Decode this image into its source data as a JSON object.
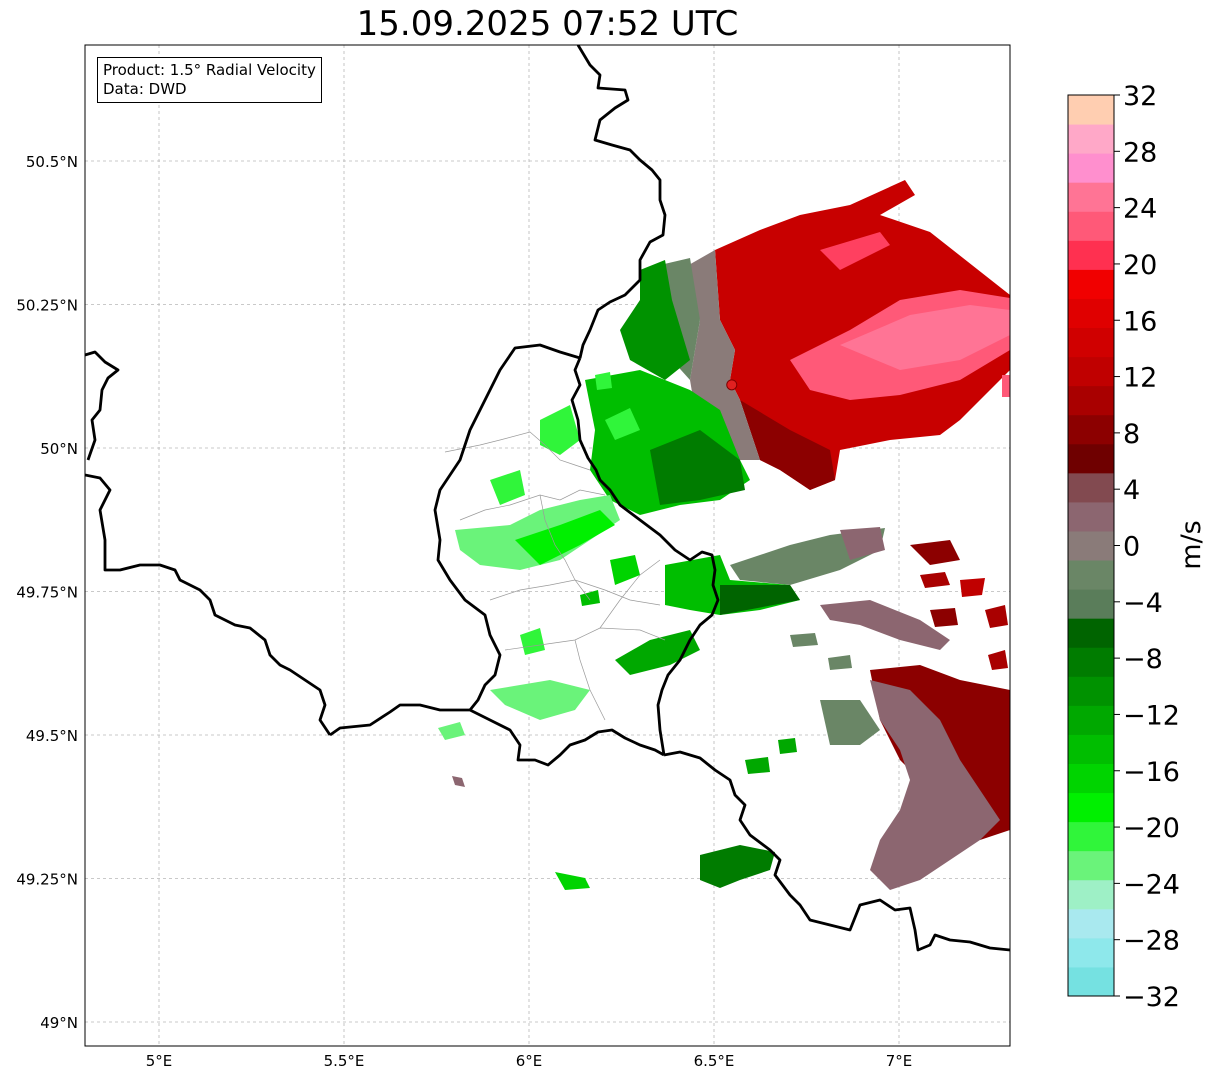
{
  "title": "15.09.2025 07:52 UTC",
  "info": {
    "product": "Product: 1.5° Radial Velocity",
    "data": "Data: DWD"
  },
  "axes": {
    "lat_labels": [
      "49°N",
      "49.25°N",
      "49.5°N",
      "49.75°N",
      "50°N",
      "50.25°N",
      "50.5°N"
    ],
    "lon_labels": [
      "5°E",
      "5.5°E",
      "6°E",
      "6.5°E",
      "7°E"
    ]
  },
  "colorbar": {
    "unit": "m/s",
    "tick_labels": [
      "32",
      "28",
      "24",
      "20",
      "16",
      "12",
      "8",
      "4",
      "0",
      "−4",
      "−8",
      "−12",
      "−16",
      "−20",
      "−24",
      "−28",
      "−32"
    ],
    "range": [
      -32,
      32
    ],
    "colors": [
      "#75e1e1",
      "#8ee8eb",
      "#a9e9ef",
      "#9ef0c6",
      "#6af37a",
      "#30f53a",
      "#00f000",
      "#00d400",
      "#00be00",
      "#00a800",
      "#009200",
      "#007c00",
      "#006400",
      "#5a7d5a",
      "#6a8666",
      "#8a7b79",
      "#8c6670",
      "#824a50",
      "#6f0000",
      "#8c0000",
      "#a90000",
      "#c00000",
      "#d00000",
      "#e00000",
      "#f10000",
      "#ff3050",
      "#ff5978",
      "#ff7495",
      "#ff8fce",
      "#ffa8c8",
      "#ffceb1"
    ]
  },
  "radar_site": {
    "lon": 6.548,
    "lat": 50.11,
    "color": "#e02020"
  }
}
